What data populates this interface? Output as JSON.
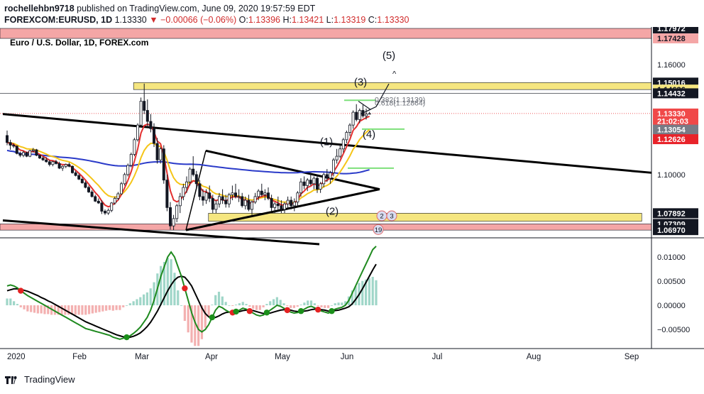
{
  "header": {
    "publisher": "rochellehbn9718",
    "published_text": "published on TradingView.com, June 09, 2020 19:57:59 EDT",
    "symbol": "FOREXCOM:EURUSD, 1D",
    "last": "1.13330",
    "change": "−0.00066 (−0.06%)",
    "o_label": "O:",
    "o_value": "1.13396",
    "h_label": "H:",
    "h_value": "1.13421",
    "l_label": "L:",
    "l_value": "1.13319",
    "c_label": "C:",
    "c_value": "1.13330"
  },
  "footer": {
    "brand": "TradingView"
  },
  "chart_data": [
    {
      "type": "candlestick",
      "title": "Euro / U.S. Dollar, 1D, FOREX.com",
      "ylim": [
        1.0655,
        1.1805
      ],
      "x_labels": [
        "2020",
        "Feb",
        "Mar",
        "Apr",
        "May",
        "Jun",
        "Jul",
        "Aug",
        "Sep"
      ],
      "price_labels": [
        {
          "text": "1.17972",
          "v": 1.17972,
          "box": true,
          "bg": "#131722",
          "fg": "#ffffff"
        },
        {
          "text": "1.17428",
          "v": 1.17428,
          "box": true,
          "bg": "#f4a6a6",
          "fg": "#131722"
        },
        {
          "text": "1.16000",
          "v": 1.16,
          "box": false
        },
        {
          "text": "1.15016",
          "v": 1.15016,
          "box": true,
          "bg": "#131722",
          "fg": "#ffffff"
        },
        {
          "text": "1.14636",
          "v": 1.14636,
          "box": true,
          "bg": "#f5e680",
          "fg": "#131722"
        },
        {
          "text": "1.14432",
          "v": 1.14432,
          "box": true,
          "bg": "#131722",
          "fg": "#ffffff"
        },
        {
          "text": "1.13330",
          "v": 1.1333,
          "box": true,
          "bg": "#f04848",
          "fg": "#ffffff"
        },
        {
          "text": "21:02:03",
          "v": 1.1291,
          "box": true,
          "bg": "#f04848",
          "fg": "#ffffff"
        },
        {
          "text": "1.13054",
          "v": 1.1245,
          "box": true,
          "bg": "#787b86",
          "fg": "#ffffff"
        },
        {
          "text": "1.12626",
          "v": 1.1193,
          "box": true,
          "bg": "#e8232a",
          "fg": "#ffffff"
        },
        {
          "text": "1.10000",
          "v": 1.1,
          "box": false
        },
        {
          "text": "1.07892",
          "v": 1.07892,
          "box": true,
          "bg": "#131722",
          "fg": "#ffffff"
        },
        {
          "text": "1.07309",
          "v": 1.07309,
          "box": true,
          "bg": "#131722",
          "fg": "#ffffff"
        },
        {
          "text": "1.06970",
          "v": 1.0697,
          "box": true,
          "bg": "#131722",
          "fg": "#ffffff"
        }
      ],
      "candles": [
        [
          1.1213,
          1.124,
          1.116,
          1.1175
        ],
        [
          1.1175,
          1.119,
          1.1135,
          1.116
        ],
        [
          1.116,
          1.117,
          1.1145,
          1.1155
        ],
        [
          1.1155,
          1.116,
          1.111,
          1.1115
        ],
        [
          1.1115,
          1.1125,
          1.1095,
          1.1105
        ],
        [
          1.1105,
          1.113,
          1.1095,
          1.112
        ],
        [
          1.112,
          1.1125,
          1.1095,
          1.11
        ],
        [
          1.11,
          1.1135,
          1.1095,
          1.113
        ],
        [
          1.113,
          1.1145,
          1.112,
          1.1135
        ],
        [
          1.1135,
          1.114,
          1.11,
          1.1105
        ],
        [
          1.1105,
          1.111,
          1.1085,
          1.109
        ],
        [
          1.109,
          1.11,
          1.1075,
          1.108
        ],
        [
          1.108,
          1.1095,
          1.1065,
          1.107
        ],
        [
          1.107,
          1.108,
          1.1045,
          1.1055
        ],
        [
          1.1055,
          1.1075,
          1.1045,
          1.107
        ],
        [
          1.107,
          1.108,
          1.1055,
          1.106
        ],
        [
          1.106,
          1.107,
          1.103,
          1.1035
        ],
        [
          1.1035,
          1.105,
          1.102,
          1.1045
        ],
        [
          1.1045,
          1.106,
          1.1035,
          1.1055
        ],
        [
          1.1055,
          1.1065,
          1.104,
          1.1045
        ],
        [
          1.1045,
          1.105,
          1.1005,
          1.101
        ],
        [
          1.101,
          1.102,
          1.099,
          1.0995
        ],
        [
          1.0995,
          1.1005,
          1.097,
          1.0975
        ],
        [
          1.0975,
          1.0985,
          1.095,
          1.0955
        ],
        [
          1.0955,
          1.0965,
          1.0925,
          1.093
        ],
        [
          1.093,
          1.094,
          1.09,
          1.0905
        ],
        [
          1.0905,
          1.0915,
          1.0875,
          1.088
        ],
        [
          1.088,
          1.089,
          1.085,
          1.0855
        ],
        [
          1.0855,
          1.087,
          1.084,
          1.0845
        ],
        [
          1.0845,
          1.086,
          1.0785,
          1.08
        ],
        [
          1.08,
          1.081,
          1.078,
          1.079
        ],
        [
          1.079,
          1.0815,
          1.078,
          1.0805
        ],
        [
          1.0805,
          1.085,
          1.0795,
          1.0845
        ],
        [
          1.0845,
          1.088,
          1.0835,
          1.087
        ],
        [
          1.087,
          1.0905,
          1.086,
          1.0895
        ],
        [
          1.0895,
          1.096,
          1.089,
          1.095
        ],
        [
          1.095,
          1.101,
          1.094,
          1.1
        ],
        [
          1.1,
          1.106,
          1.099,
          1.105
        ],
        [
          1.105,
          1.112,
          1.104,
          1.111
        ],
        [
          1.111,
          1.12,
          1.11,
          1.119
        ],
        [
          1.119,
          1.128,
          1.118,
          1.127
        ],
        [
          1.127,
          1.142,
          1.126,
          1.14
        ],
        [
          1.14,
          1.1496,
          1.133,
          1.135
        ],
        [
          1.135,
          1.141,
          1.126,
          1.129
        ],
        [
          1.129,
          1.133,
          1.123,
          1.125
        ],
        [
          1.125,
          1.128,
          1.115,
          1.117
        ],
        [
          1.117,
          1.12,
          1.106,
          1.108
        ],
        [
          1.108,
          1.115,
          1.106,
          1.114
        ],
        [
          1.114,
          1.116,
          1.095,
          1.097
        ],
        [
          1.097,
          1.1,
          1.08,
          1.082
        ],
        [
          1.082,
          1.085,
          1.07,
          1.072
        ],
        [
          1.072,
          1.078,
          1.0697,
          1.076
        ],
        [
          1.076,
          1.084,
          1.074,
          1.083
        ],
        [
          1.083,
          1.09,
          1.079,
          1.088
        ],
        [
          1.088,
          1.095,
          1.086,
          1.093
        ],
        [
          1.093,
          1.099,
          1.09,
          1.096
        ],
        [
          1.096,
          1.104,
          1.094,
          1.103
        ],
        [
          1.103,
          1.11,
          1.099,
          1.1
        ],
        [
          1.1,
          1.102,
          1.092,
          1.095
        ],
        [
          1.095,
          1.097,
          1.086,
          1.088
        ],
        [
          1.088,
          1.092,
          1.083,
          1.086
        ],
        [
          1.086,
          1.092,
          1.084,
          1.09
        ],
        [
          1.09,
          1.094,
          1.085,
          1.087
        ],
        [
          1.087,
          1.089,
          1.079,
          1.081
        ],
        [
          1.081,
          1.086,
          1.079,
          1.084
        ],
        [
          1.084,
          1.09,
          1.082,
          1.088
        ],
        [
          1.088,
          1.092,
          1.084,
          1.086
        ],
        [
          1.086,
          1.089,
          1.082,
          1.084
        ],
        [
          1.084,
          1.09,
          1.082,
          1.089
        ],
        [
          1.089,
          1.094,
          1.086,
          1.09
        ],
        [
          1.09,
          1.095,
          1.087,
          1.088
        ],
        [
          1.088,
          1.092,
          1.085,
          1.088
        ],
        [
          1.088,
          1.09,
          1.082,
          1.083
        ],
        [
          1.083,
          1.088,
          1.081,
          1.086
        ],
        [
          1.086,
          1.089,
          1.08,
          1.081
        ],
        [
          1.081,
          1.086,
          1.078,
          1.085
        ],
        [
          1.085,
          1.09,
          1.084,
          1.088
        ],
        [
          1.088,
          1.092,
          1.086,
          1.091
        ],
        [
          1.091,
          1.095,
          1.088,
          1.089
        ],
        [
          1.089,
          1.092,
          1.086,
          1.09
        ],
        [
          1.09,
          1.093,
          1.086,
          1.087
        ],
        [
          1.087,
          1.089,
          1.08,
          1.082
        ],
        [
          1.082,
          1.085,
          1.079,
          1.084
        ],
        [
          1.084,
          1.088,
          1.081,
          1.083
        ],
        [
          1.083,
          1.086,
          1.079,
          1.081
        ],
        [
          1.081,
          1.085,
          1.079,
          1.084
        ],
        [
          1.084,
          1.088,
          1.082,
          1.086
        ],
        [
          1.086,
          1.088,
          1.081,
          1.083
        ],
        [
          1.083,
          1.087,
          1.08,
          1.085
        ],
        [
          1.085,
          1.091,
          1.083,
          1.09
        ],
        [
          1.09,
          1.098,
          1.088,
          1.096
        ],
        [
          1.096,
          1.099,
          1.092,
          1.094
        ],
        [
          1.094,
          1.098,
          1.091,
          1.097
        ],
        [
          1.097,
          1.101,
          1.094,
          1.095
        ],
        [
          1.095,
          1.099,
          1.092,
          1.098
        ],
        [
          1.098,
          1.1,
          1.09,
          1.092
        ],
        [
          1.092,
          1.096,
          1.09,
          1.095
        ],
        [
          1.095,
          1.101,
          1.093,
          1.1
        ],
        [
          1.1,
          1.103,
          1.096,
          1.098
        ],
        [
          1.098,
          1.102,
          1.095,
          1.101
        ],
        [
          1.101,
          1.109,
          1.099,
          1.108
        ],
        [
          1.108,
          1.114,
          1.106,
          1.11
        ],
        [
          1.11,
          1.116,
          1.109,
          1.114
        ],
        [
          1.114,
          1.12,
          1.112,
          1.119
        ],
        [
          1.119,
          1.124,
          1.117,
          1.123
        ],
        [
          1.123,
          1.128,
          1.121,
          1.127
        ],
        [
          1.127,
          1.135,
          1.125,
          1.134
        ],
        [
          1.134,
          1.1384,
          1.129,
          1.13
        ],
        [
          1.13,
          1.136,
          1.128,
          1.135
        ],
        [
          1.135,
          1.138,
          1.131,
          1.132
        ],
        [
          1.132,
          1.136,
          1.13,
          1.133
        ],
        [
          1.133,
          1.1342,
          1.1332,
          1.1333
        ]
      ],
      "zones": [
        {
          "top": 1.17972,
          "bottom": 1.17428,
          "color": "#f4a6a6",
          "x0": 0.0,
          "x1": 1.0
        },
        {
          "top": 1.15016,
          "bottom": 1.14636,
          "color": "#f5e680",
          "x0": 0.205,
          "x1": 1.0
        },
        {
          "top": 1.07892,
          "bottom": 1.0745,
          "color": "#f5e680",
          "x0": 0.32,
          "x1": 0.985
        },
        {
          "top": 1.07309,
          "bottom": 1.0697,
          "color": "#f4a6a6",
          "x0": 0.0,
          "x1": 1.0
        }
      ],
      "fib_labels": [
        {
          "text": "0.382(1.13139)",
          "v": 1.1395
        },
        {
          "text": "0.618(1.12864)",
          "v": 1.1377
        }
      ],
      "wave_labels": [
        {
          "text": "(5)",
          "v": 1.163
        },
        {
          "text": "(3)",
          "v": 1.1485
        },
        {
          "text": "(1)",
          "v": 1.116
        },
        {
          "text": "(4)",
          "v": 1.12
        },
        {
          "text": "(2)",
          "v": 1.078
        }
      ],
      "event_badges": [
        {
          "text": "2"
        },
        {
          "text": "3"
        },
        {
          "text": "19"
        }
      ]
    },
    {
      "type": "macd",
      "ylim": [
        -0.0085,
        0.0135
      ],
      "y_ticks": [
        {
          "text": "0.01000",
          "v": 0.01
        },
        {
          "text": "0.00500",
          "v": 0.005
        },
        {
          "text": "0.00000",
          "v": 0.0
        },
        {
          "text": "−0.00500",
          "v": -0.005
        }
      ],
      "macd": [
        0.004,
        0.0042,
        0.004,
        0.0036,
        0.003,
        0.0025,
        0.002,
        0.0016,
        0.0012,
        0.0008,
        0.0004,
        0.0,
        -0.0004,
        -0.0008,
        -0.0012,
        -0.0016,
        -0.002,
        -0.0024,
        -0.0028,
        -0.0032,
        -0.0036,
        -0.004,
        -0.0044,
        -0.0048,
        -0.005,
        -0.0052,
        -0.0054,
        -0.0056,
        -0.0058,
        -0.006,
        -0.0062,
        -0.0066,
        -0.0068,
        -0.007,
        -0.0068,
        -0.0066,
        -0.0063,
        -0.0058,
        -0.0052,
        -0.0045,
        -0.0035,
        -0.0025,
        -0.001,
        0.001,
        0.0035,
        0.006,
        0.008,
        0.01,
        0.011,
        0.01,
        0.008,
        0.006,
        0.0035,
        0.001,
        -0.0015,
        -0.0035,
        -0.005,
        -0.0055,
        -0.005,
        -0.004,
        -0.0025,
        -0.001,
        -0.0002,
        -0.0005,
        -0.001,
        -0.0014,
        -0.0015,
        -0.0013,
        -0.001,
        -0.0006,
        -0.0008,
        -0.0012,
        -0.0016,
        -0.002,
        -0.0022,
        -0.002,
        -0.0015,
        -0.001,
        -0.0005,
        0.0,
        -0.0002,
        -0.0006,
        -0.001,
        -0.0014,
        -0.0016,
        -0.0015,
        -0.0012,
        -0.0008,
        -0.0004,
        -0.0002,
        -0.0005,
        -0.0009,
        -0.0012,
        -0.0014,
        -0.0016,
        -0.0012,
        -0.0008,
        -0.0006,
        -0.0004,
        0.0,
        0.001,
        0.0025,
        0.004,
        0.0055,
        0.007,
        0.0085,
        0.01,
        0.0115,
        0.0122
      ],
      "signal": [
        0.003,
        0.0032,
        0.0034,
        0.0034,
        0.0033,
        0.0031,
        0.0029,
        0.0026,
        0.0023,
        0.002,
        0.0016,
        0.0013,
        0.0009,
        0.0006,
        0.0002,
        -0.0002,
        -0.0006,
        -0.001,
        -0.0014,
        -0.0018,
        -0.0022,
        -0.0026,
        -0.003,
        -0.0034,
        -0.0037,
        -0.004,
        -0.0043,
        -0.0046,
        -0.0049,
        -0.0052,
        -0.0055,
        -0.0058,
        -0.0061,
        -0.0063,
        -0.0065,
        -0.0066,
        -0.0066,
        -0.0064,
        -0.0061,
        -0.0057,
        -0.0051,
        -0.0044,
        -0.0035,
        -0.0024,
        -0.0012,
        0.0002,
        0.0016,
        0.003,
        0.0042,
        0.0052,
        0.0058,
        0.006,
        0.0058,
        0.005,
        0.004,
        0.0025,
        0.001,
        -0.0005,
        -0.0017,
        -0.0024,
        -0.0026,
        -0.0025,
        -0.0022,
        -0.0018,
        -0.0015,
        -0.0014,
        -0.0014,
        -0.0014,
        -0.0013,
        -0.0011,
        -0.001,
        -0.001,
        -0.0011,
        -0.0013,
        -0.0015,
        -0.0017,
        -0.0017,
        -0.0016,
        -0.0014,
        -0.0012,
        -0.001,
        -0.0009,
        -0.0009,
        -0.001,
        -0.0012,
        -0.0013,
        -0.0013,
        -0.0012,
        -0.0011,
        -0.0009,
        -0.0008,
        -0.0008,
        -0.0009,
        -0.001,
        -0.0012,
        -0.0012,
        -0.0011,
        -0.001,
        -0.0008,
        -0.0006,
        -0.0003,
        0.0003,
        0.0012,
        0.0022,
        0.0034,
        0.0047,
        0.006,
        0.0073,
        0.0085
      ]
    }
  ]
}
